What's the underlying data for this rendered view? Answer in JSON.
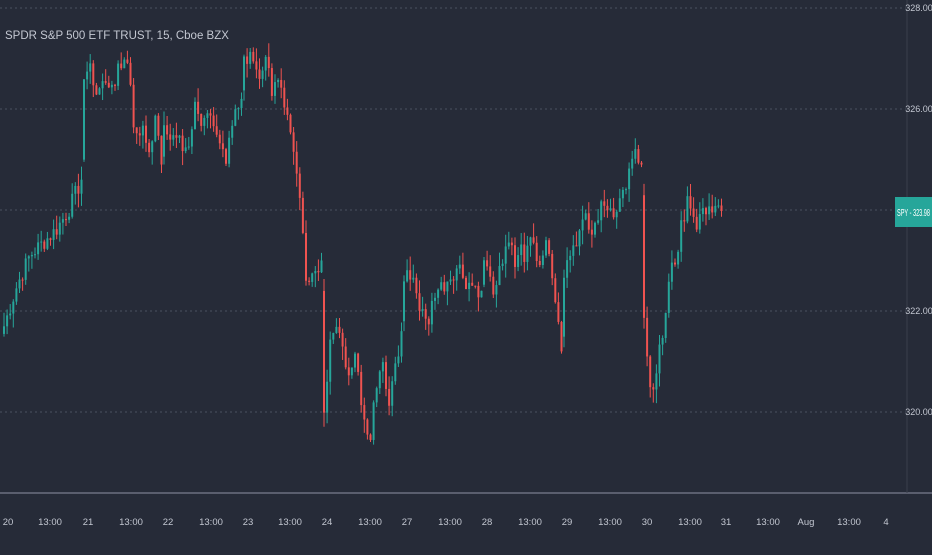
{
  "symbol_title": "SPDR S&P 500 ETF TRUST, 15, Cboe BZX",
  "price_badge": "SPY - 323.98",
  "colors": {
    "background": "#262b38",
    "up": "#26a69a",
    "down": "#ef5350",
    "grid": "#4a5060",
    "text": "#c3c7d1",
    "badge": "#26a69a"
  },
  "chart_data": {
    "type": "candlestick",
    "title": "SPDR S&P 500 ETF TRUST, 15, Cboe BZX",
    "interval": "15",
    "y_axis": {
      "ticks": [
        "328.00",
        "326.00",
        "324.00",
        "322.00",
        "320.00"
      ],
      "range": [
        318.4,
        328.2
      ]
    },
    "x_axis": {
      "ticks": [
        "20",
        "13:00",
        "21",
        "13:00",
        "22",
        "13:00",
        "23",
        "13:00",
        "24",
        "13:00",
        "27",
        "13:00",
        "28",
        "13:00",
        "29",
        "13:00",
        "30",
        "13:00",
        "31",
        "13:00",
        "Aug",
        "13:00",
        "4"
      ]
    },
    "last_price": 323.98,
    "grid": "horizontal dotted",
    "series": [
      {
        "day": "20",
        "path": [
          321.7,
          322.5,
          323.1,
          323.35,
          323.6,
          324.0,
          324.6
        ]
      },
      {
        "day": "21",
        "path": [
          326.5,
          326.9,
          326.3,
          326.7,
          326.3,
          326.6,
          327.1,
          326.8,
          325.3,
          325.6,
          325.1,
          325.8,
          324.9
        ]
      },
      {
        "day": "22",
        "path": [
          325.7,
          325.3,
          325.5,
          325.0,
          326.0,
          325.6,
          325.9,
          325.3,
          324.9,
          325.8,
          326.2
        ]
      },
      {
        "day": "23",
        "path": [
          326.9,
          327.2,
          326.7,
          327.0,
          326.4,
          326.7,
          325.9,
          325.3,
          324.0,
          322.3,
          322.8,
          323.0
        ]
      },
      {
        "day": "24",
        "path": [
          320.0,
          321.5,
          321.8,
          321.2,
          320.6,
          321.3,
          320.0,
          319.4,
          320.5,
          321.2,
          320.0,
          320.8,
          321.6
        ]
      },
      {
        "day": "27",
        "path": [
          322.6,
          322.8,
          322.1,
          321.7,
          322.4,
          322.5,
          322.7,
          322.9,
          322.6,
          322.5,
          322.4
        ]
      },
      {
        "day": "28",
        "path": [
          323.1,
          322.7,
          322.4,
          322.9,
          323.2,
          323.6,
          322.8,
          323.2,
          323.0,
          323.4,
          323.2,
          323.0,
          323.4,
          322.8,
          321.9,
          321.2
        ]
      },
      {
        "day": "29",
        "path": [
          322.8,
          323.2,
          323.5,
          323.8,
          323.5,
          324.0,
          324.1,
          324.0,
          324.2,
          324.6,
          325.1,
          324.9
        ]
      },
      {
        "day": "30",
        "path": [
          321.9,
          320.4,
          320.9,
          321.6,
          322.7,
          323.1,
          323.8,
          324.3,
          323.7,
          324.0,
          323.9,
          324.2,
          323.98
        ]
      }
    ]
  }
}
